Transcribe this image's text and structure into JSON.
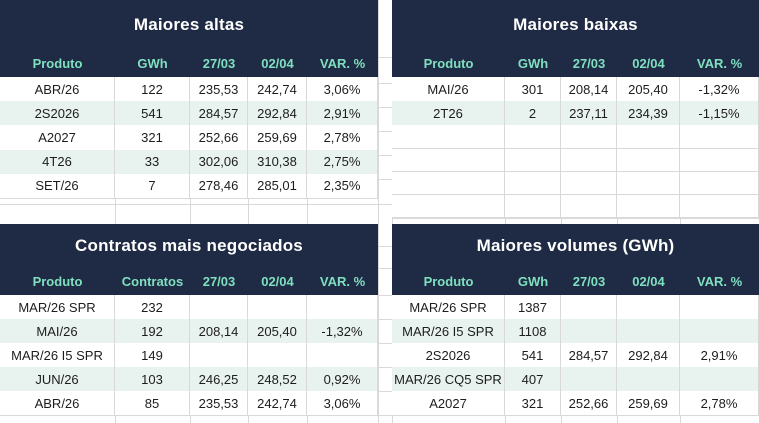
{
  "colors": {
    "header_bg": "#1f2a44",
    "title_text": "#ffffff",
    "column_header_text": "#7fe0c0",
    "row_alt_bg": "#e8f2ee",
    "gridline": "#d9d9d9",
    "cell_text": "#1d1d1d"
  },
  "tables": {
    "maiores_altas": {
      "title": "Maiores altas",
      "columns": [
        "Produto",
        "GWh",
        "27/03",
        "02/04",
        "VAR. %"
      ],
      "rows": [
        [
          "ABR/26",
          "122",
          "235,53",
          "242,74",
          "3,06%"
        ],
        [
          "2S2026",
          "541",
          "284,57",
          "292,84",
          "2,91%"
        ],
        [
          "A2027",
          "321",
          "252,66",
          "259,69",
          "2,78%"
        ],
        [
          "4T26",
          "33",
          "302,06",
          "310,38",
          "2,75%"
        ],
        [
          "SET/26",
          "7",
          "278,46",
          "285,01",
          "2,35%"
        ]
      ],
      "empty_rows": 0
    },
    "maiores_baixas": {
      "title": "Maiores baixas",
      "columns": [
        "Produto",
        "GWh",
        "27/03",
        "02/04",
        "VAR. %"
      ],
      "rows": [
        [
          "MAI/26",
          "301",
          "208,14",
          "205,40",
          "-1,32%"
        ],
        [
          "2T26",
          "2",
          "237,11",
          "234,39",
          "-1,15%"
        ]
      ],
      "empty_rows": 4
    },
    "contratos_mais_negociados": {
      "title": "Contratos mais negociados",
      "columns": [
        "Produto",
        "Contratos",
        "27/03",
        "02/04",
        "VAR. %"
      ],
      "rows": [
        [
          "MAR/26 SPR",
          "232",
          "",
          "",
          ""
        ],
        [
          "MAI/26",
          "192",
          "208,14",
          "205,40",
          "-1,32%"
        ],
        [
          "MAR/26 I5 SPR",
          "149",
          "",
          "",
          ""
        ],
        [
          "JUN/26",
          "103",
          "246,25",
          "248,52",
          "0,92%"
        ],
        [
          "ABR/26",
          "85",
          "235,53",
          "242,74",
          "3,06%"
        ]
      ],
      "empty_rows": 0
    },
    "maiores_volumes": {
      "title": "Maiores volumes (GWh)",
      "columns": [
        "Produto",
        "GWh",
        "27/03",
        "02/04",
        "VAR. %"
      ],
      "rows": [
        [
          "MAR/26 SPR",
          "1387",
          "",
          "",
          ""
        ],
        [
          "MAR/26 I5 SPR",
          "1108",
          "",
          "",
          ""
        ],
        [
          "2S2026",
          "541",
          "284,57",
          "292,84",
          "2,91%"
        ],
        [
          "MAR/26 CQ5 SPR",
          "407",
          "",
          "",
          ""
        ],
        [
          "A2027",
          "321",
          "252,66",
          "259,69",
          "2,78%"
        ]
      ],
      "empty_rows": 0
    }
  }
}
